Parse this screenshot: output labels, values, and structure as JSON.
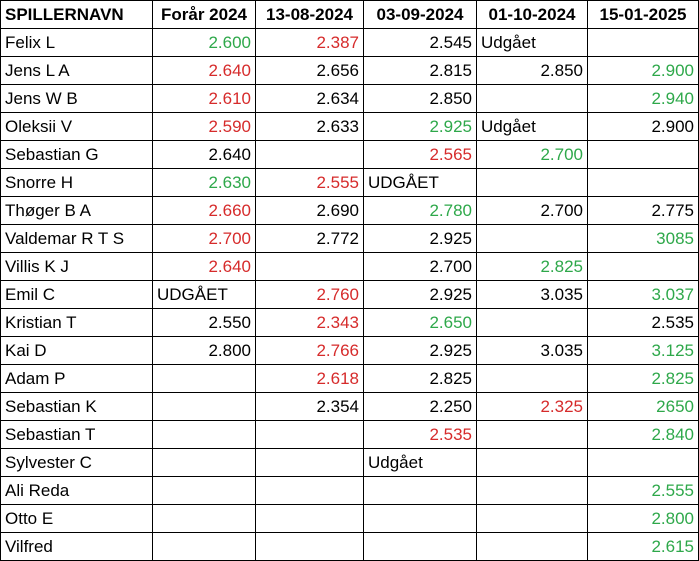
{
  "colors": {
    "green": "#2ea84a",
    "red": "#d62b2b",
    "black": "#000000"
  },
  "headers": [
    "SPILLERNAVN",
    "Forår 2024",
    "13-08-2024",
    "03-09-2024",
    "01-10-2024",
    "15-01-2025"
  ],
  "rows": [
    {
      "name": "Felix L",
      "cells": [
        {
          "v": "2.600",
          "c": "green",
          "a": "num"
        },
        {
          "v": "2.387",
          "c": "red",
          "a": "num"
        },
        {
          "v": "2.545",
          "c": "black",
          "a": "num"
        },
        {
          "v": "Udgået",
          "c": "black",
          "a": "text"
        },
        {
          "v": "",
          "c": "black",
          "a": "num"
        }
      ]
    },
    {
      "name": "Jens L A",
      "cells": [
        {
          "v": "2.640",
          "c": "red",
          "a": "num"
        },
        {
          "v": "2.656",
          "c": "black",
          "a": "num"
        },
        {
          "v": "2.815",
          "c": "black",
          "a": "num"
        },
        {
          "v": "2.850",
          "c": "black",
          "a": "num"
        },
        {
          "v": "2.900",
          "c": "green",
          "a": "num"
        }
      ]
    },
    {
      "name": "Jens W B",
      "cells": [
        {
          "v": "2.610",
          "c": "red",
          "a": "num"
        },
        {
          "v": "2.634",
          "c": "black",
          "a": "num"
        },
        {
          "v": "2.850",
          "c": "black",
          "a": "num"
        },
        {
          "v": "",
          "c": "black",
          "a": "num"
        },
        {
          "v": "2.940",
          "c": "green",
          "a": "num"
        }
      ]
    },
    {
      "name": "Oleksii V",
      "cells": [
        {
          "v": "2.590",
          "c": "red",
          "a": "num"
        },
        {
          "v": "2.633",
          "c": "black",
          "a": "num"
        },
        {
          "v": "2.925",
          "c": "green",
          "a": "num"
        },
        {
          "v": "Udgået",
          "c": "black",
          "a": "text"
        },
        {
          "v": "2.900",
          "c": "black",
          "a": "num"
        }
      ]
    },
    {
      "name": "Sebastian G",
      "cells": [
        {
          "v": "2.640",
          "c": "black",
          "a": "num"
        },
        {
          "v": "",
          "c": "black",
          "a": "num"
        },
        {
          "v": "2.565",
          "c": "red",
          "a": "num"
        },
        {
          "v": "2.700",
          "c": "green",
          "a": "num"
        },
        {
          "v": "",
          "c": "black",
          "a": "num"
        }
      ]
    },
    {
      "name": "Snorre H",
      "cells": [
        {
          "v": "2.630",
          "c": "green",
          "a": "num"
        },
        {
          "v": "2.555",
          "c": "red",
          "a": "num"
        },
        {
          "v": "UDGÅET",
          "c": "black",
          "a": "text"
        },
        {
          "v": "",
          "c": "black",
          "a": "num"
        },
        {
          "v": "",
          "c": "black",
          "a": "num"
        }
      ]
    },
    {
      "name": "Thøger B A",
      "cells": [
        {
          "v": "2.660",
          "c": "red",
          "a": "num"
        },
        {
          "v": "2.690",
          "c": "black",
          "a": "num"
        },
        {
          "v": "2.780",
          "c": "green",
          "a": "num"
        },
        {
          "v": "2.700",
          "c": "black",
          "a": "num"
        },
        {
          "v": "2.775",
          "c": "black",
          "a": "num"
        }
      ]
    },
    {
      "name": "Valdemar R T S",
      "cells": [
        {
          "v": "2.700",
          "c": "red",
          "a": "num"
        },
        {
          "v": "2.772",
          "c": "black",
          "a": "num"
        },
        {
          "v": "2.925",
          "c": "black",
          "a": "num"
        },
        {
          "v": "",
          "c": "black",
          "a": "num"
        },
        {
          "v": "3085",
          "c": "green",
          "a": "num"
        }
      ]
    },
    {
      "name": "Villis K J",
      "cells": [
        {
          "v": "2.640",
          "c": "red",
          "a": "num"
        },
        {
          "v": "",
          "c": "black",
          "a": "num"
        },
        {
          "v": "2.700",
          "c": "black",
          "a": "num"
        },
        {
          "v": "2.825",
          "c": "green",
          "a": "num"
        },
        {
          "v": "",
          "c": "black",
          "a": "num"
        }
      ]
    },
    {
      "name": "Emil C",
      "cells": [
        {
          "v": "UDGÅET",
          "c": "black",
          "a": "text"
        },
        {
          "v": "2.760",
          "c": "red",
          "a": "num"
        },
        {
          "v": "2.925",
          "c": "black",
          "a": "num"
        },
        {
          "v": "3.035",
          "c": "black",
          "a": "num"
        },
        {
          "v": "3.037",
          "c": "green",
          "a": "num"
        }
      ]
    },
    {
      "name": "Kristian T",
      "cells": [
        {
          "v": "2.550",
          "c": "black",
          "a": "num"
        },
        {
          "v": "2.343",
          "c": "red",
          "a": "num"
        },
        {
          "v": "2.650",
          "c": "green",
          "a": "num"
        },
        {
          "v": "",
          "c": "black",
          "a": "num"
        },
        {
          "v": "2.535",
          "c": "black",
          "a": "num"
        }
      ]
    },
    {
      "name": "Kai D",
      "cells": [
        {
          "v": "2.800",
          "c": "black",
          "a": "num"
        },
        {
          "v": "2.766",
          "c": "red",
          "a": "num"
        },
        {
          "v": "2.925",
          "c": "black",
          "a": "num"
        },
        {
          "v": "3.035",
          "c": "black",
          "a": "num"
        },
        {
          "v": "3.125",
          "c": "green",
          "a": "num"
        }
      ]
    },
    {
      "name": "Adam P",
      "cells": [
        {
          "v": "",
          "c": "black",
          "a": "num"
        },
        {
          "v": "2.618",
          "c": "red",
          "a": "num"
        },
        {
          "v": "2.825",
          "c": "black",
          "a": "num"
        },
        {
          "v": "",
          "c": "black",
          "a": "num"
        },
        {
          "v": "2.825",
          "c": "green",
          "a": "num"
        }
      ]
    },
    {
      "name": "Sebastian K",
      "cells": [
        {
          "v": "",
          "c": "black",
          "a": "num"
        },
        {
          "v": "2.354",
          "c": "black",
          "a": "num"
        },
        {
          "v": "2.250",
          "c": "black",
          "a": "num"
        },
        {
          "v": "2.325",
          "c": "red",
          "a": "num"
        },
        {
          "v": "2650",
          "c": "green",
          "a": "num"
        }
      ]
    },
    {
      "name": "Sebastian T",
      "cells": [
        {
          "v": "",
          "c": "black",
          "a": "num"
        },
        {
          "v": "",
          "c": "black",
          "a": "num"
        },
        {
          "v": "2.535",
          "c": "red",
          "a": "num"
        },
        {
          "v": "",
          "c": "black",
          "a": "num"
        },
        {
          "v": "2.840",
          "c": "green",
          "a": "num"
        }
      ]
    },
    {
      "name": "Sylvester C",
      "cells": [
        {
          "v": "",
          "c": "black",
          "a": "num"
        },
        {
          "v": "",
          "c": "black",
          "a": "num"
        },
        {
          "v": "Udgået",
          "c": "black",
          "a": "text"
        },
        {
          "v": "",
          "c": "black",
          "a": "num"
        },
        {
          "v": "",
          "c": "black",
          "a": "num"
        }
      ]
    },
    {
      "name": "Ali Reda",
      "cells": [
        {
          "v": "",
          "c": "black",
          "a": "num"
        },
        {
          "v": "",
          "c": "black",
          "a": "num"
        },
        {
          "v": "",
          "c": "black",
          "a": "num"
        },
        {
          "v": "",
          "c": "black",
          "a": "num"
        },
        {
          "v": "2.555",
          "c": "green",
          "a": "num"
        }
      ]
    },
    {
      "name": "Otto E",
      "cells": [
        {
          "v": "",
          "c": "black",
          "a": "num"
        },
        {
          "v": "",
          "c": "black",
          "a": "num"
        },
        {
          "v": "",
          "c": "black",
          "a": "num"
        },
        {
          "v": "",
          "c": "black",
          "a": "num"
        },
        {
          "v": "2.800",
          "c": "green",
          "a": "num"
        }
      ]
    },
    {
      "name": "Vilfred",
      "cells": [
        {
          "v": "",
          "c": "black",
          "a": "num"
        },
        {
          "v": "",
          "c": "black",
          "a": "num"
        },
        {
          "v": "",
          "c": "black",
          "a": "num"
        },
        {
          "v": "",
          "c": "black",
          "a": "num"
        },
        {
          "v": "2.615",
          "c": "green",
          "a": "num"
        }
      ]
    }
  ]
}
